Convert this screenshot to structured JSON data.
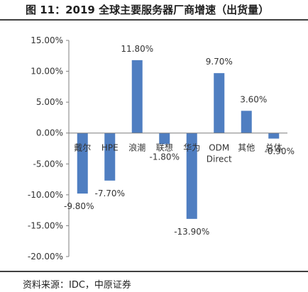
{
  "header": {
    "title": "图 11：2019 全球主要服务器厂商增速（出货量）"
  },
  "footer": {
    "source": "资料来源：IDC，中原证券"
  },
  "chart_data": {
    "type": "bar",
    "title": "",
    "xlabel": "",
    "ylabel": "",
    "categories": [
      [
        "戴尔"
      ],
      [
        "HPE"
      ],
      [
        "浪潮"
      ],
      [
        "联想"
      ],
      [
        "华为"
      ],
      [
        "ODM",
        "Direct"
      ],
      [
        "其他"
      ],
      [
        "总体"
      ]
    ],
    "values": [
      -9.8,
      -7.7,
      11.8,
      -1.8,
      -13.9,
      9.7,
      3.6,
      -0.9
    ],
    "data_labels": [
      "-9.80%",
      "-7.70%",
      "11.80%",
      "-1.80%",
      "-13.90%",
      "9.70%",
      "3.60%",
      "-0.90%"
    ],
    "ylim": [
      -20,
      15
    ],
    "yticks": [
      15,
      10,
      5,
      0,
      -5,
      -10,
      -15,
      -20
    ],
    "ytick_labels": [
      "15.00%",
      "10.00%",
      "5.00%",
      "0.00%",
      "-5.00%",
      "-10.00%",
      "-15.00%",
      "-20.00%"
    ],
    "grid": false,
    "legend": "none",
    "bar_color": "#4F7EC1"
  }
}
